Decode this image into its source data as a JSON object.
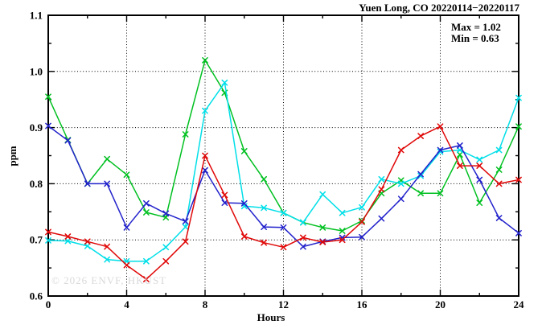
{
  "title": "Yuen Long, CO 20220114−20220117",
  "annotations": {
    "max_label": "Max = 1.02",
    "min_label": "Min = 0.63"
  },
  "watermark": "© 2026 ENVF, HKUST",
  "chart_data": {
    "type": "line",
    "title": "Yuen Long, CO 20220114−20220117",
    "xlabel": "Hours",
    "ylabel": "ppm",
    "xlim": [
      0,
      24
    ],
    "ylim": [
      0.6,
      1.1
    ],
    "x_major_ticks": [
      0,
      4,
      8,
      12,
      16,
      20,
      24
    ],
    "x_tick_labels": [
      "0",
      "4",
      "8",
      "12",
      "16",
      "20",
      "24"
    ],
    "x_minor_ticks": [
      2,
      6,
      10,
      14,
      18,
      22
    ],
    "y_major_ticks": [
      0.6,
      0.7,
      0.8,
      0.9,
      1.0,
      1.1
    ],
    "y_tick_labels": [
      "0.6",
      "0.7",
      "0.8",
      "0.9",
      "1.0",
      "1.1"
    ],
    "y_minor_ticks": [
      0.65,
      0.75,
      0.85,
      0.95,
      1.05
    ],
    "grid_x_lines": [
      4,
      8,
      12,
      16,
      20
    ],
    "grid_y_lines": [
      0.7,
      0.8,
      0.9,
      1.0
    ],
    "grid_style": "dotted",
    "legend_position": "top-right-inside",
    "marker": "x",
    "x": [
      0,
      1,
      2,
      3,
      4,
      5,
      6,
      7,
      8,
      9,
      10,
      11,
      12,
      13,
      14,
      15,
      16,
      17,
      18,
      19,
      20,
      21,
      22,
      23,
      24
    ],
    "series": [
      {
        "name": "series-green",
        "color": "#00c020",
        "values": [
          0.955,
          0.878,
          0.8,
          0.844,
          0.816,
          0.749,
          0.74,
          0.888,
          1.02,
          0.962,
          0.858,
          0.808,
          0.748,
          0.731,
          0.722,
          0.716,
          0.734,
          0.783,
          0.806,
          0.783,
          0.783,
          0.852,
          0.766,
          0.825,
          0.902
        ]
      },
      {
        "name": "series-cyan",
        "color": "#00dfe8",
        "values": [
          0.699,
          0.698,
          0.689,
          0.665,
          0.662,
          0.662,
          0.687,
          0.723,
          0.93,
          0.98,
          0.76,
          0.757,
          0.748,
          0.731,
          0.781,
          0.748,
          0.758,
          0.808,
          0.8,
          0.814,
          0.857,
          0.86,
          0.843,
          0.86,
          0.953
        ]
      },
      {
        "name": "series-blue",
        "color": "#2222cc",
        "values": [
          0.903,
          0.877,
          0.8,
          0.8,
          0.722,
          0.765,
          0.747,
          0.733,
          0.824,
          0.766,
          0.765,
          0.723,
          0.722,
          0.688,
          0.697,
          0.704,
          0.705,
          0.738,
          0.773,
          0.817,
          0.86,
          0.868,
          0.807,
          0.739,
          0.712
        ]
      },
      {
        "name": "series-red",
        "color": "#e00808",
        "values": [
          0.714,
          0.706,
          0.697,
          0.688,
          0.655,
          0.63,
          0.662,
          0.697,
          0.85,
          0.78,
          0.706,
          0.695,
          0.687,
          0.704,
          0.696,
          0.7,
          0.732,
          0.79,
          0.86,
          0.885,
          0.902,
          0.832,
          0.832,
          0.8,
          0.807
        ]
      }
    ],
    "stats": {
      "max": 1.02,
      "min": 0.63
    }
  }
}
